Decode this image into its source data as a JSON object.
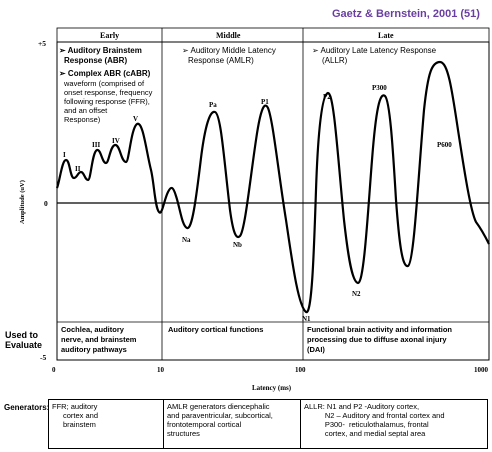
{
  "citation": "Gaetz & Bernstein, 2001 (51)",
  "sections": [
    {
      "heading": "Early",
      "description": [
        "➢ Auditory Brainstem",
        "Response (ABR)",
        "➢ Complex ABR (cABR)",
        "waveform (comprised of",
        "onset response, frequency",
        "following response (FFR),",
        "and an offset",
        "Response)"
      ]
    },
    {
      "heading": "Middle",
      "description": [
        "➢ Auditory Middle Latency",
        "Response (AMLR)"
      ]
    },
    {
      "heading": "Late",
      "description": [
        "➢  Auditory Late Latency Response",
        "(ALLR)"
      ]
    }
  ],
  "y_axis": {
    "label": "Amplitude (uV)",
    "ticks": [
      "+5",
      "0",
      "-5"
    ]
  },
  "x_axis": {
    "label": "Latency (ms)",
    "ticks": [
      "0",
      "10",
      "100",
      "1000"
    ]
  },
  "peaks": [
    "I",
    "II",
    "III",
    "IV",
    "V",
    "Na",
    "Pa",
    "Nb",
    "P1",
    "N1",
    "P2",
    "N2",
    "P300",
    "P600"
  ],
  "evaluate": {
    "label_line1": "Used to",
    "label_line2": "Evaluate",
    "cells": [
      [
        "Cochlea, auditory",
        "nerve, and brainstem",
        "auditory pathways"
      ],
      [
        "Auditory cortical functions"
      ],
      [
        "Functional brain activity and information",
        "processing due to diffuse axonal injury",
        "(DAI)"
      ]
    ]
  },
  "generators": {
    "label": "Generators:",
    "cells": [
      [
        "FFR;  auditory",
        "cortex and",
        "brainstem"
      ],
      [
        "AMLR generators diencephalic",
        "and paraventricular, subcortical,",
        "frontotemporal cortical",
        "structures"
      ],
      [
        "ALLR: N1 and P2 -Auditory cortex,",
        "          N2 – Auditory and frontal cortex and",
        "          P300-  reticulothalamus, frontal",
        "          cortex, and medial septal area"
      ]
    ]
  },
  "chart_data": {
    "type": "line",
    "x_scale": "log",
    "xlabel": "Latency (ms)",
    "ylabel": "Amplitude (uV)",
    "x_ticks": [
      0,
      10,
      100,
      1000
    ],
    "y_ticks": [
      "+5",
      "0",
      "-5"
    ],
    "ylim": [
      -5,
      5
    ],
    "annotated_peaks": [
      {
        "label": "I",
        "x": 1.5,
        "y": 1.8
      },
      {
        "label": "II",
        "x": 2.6,
        "y": 1.2
      },
      {
        "label": "III",
        "x": 3.8,
        "y": 2.2
      },
      {
        "label": "IV",
        "x": 5.2,
        "y": 2.3
      },
      {
        "label": "V",
        "x": 6.4,
        "y": 3.1
      },
      {
        "label": "Na",
        "x": 17,
        "y": -1.5
      },
      {
        "label": "Pa",
        "x": 30,
        "y": 3.4
      },
      {
        "label": "Nb",
        "x": 40,
        "y": -1.7
      },
      {
        "label": "P1",
        "x": 58,
        "y": 3.7
      },
      {
        "label": "N1",
        "x": 105,
        "y": -4.5
      },
      {
        "label": "P2",
        "x": 150,
        "y": 4.0
      },
      {
        "label": "N2",
        "x": 220,
        "y": -3.2
      },
      {
        "label": "P300",
        "x": 320,
        "y": 4.2
      },
      {
        "label": "P600",
        "x": 650,
        "y": 5.0
      }
    ]
  }
}
